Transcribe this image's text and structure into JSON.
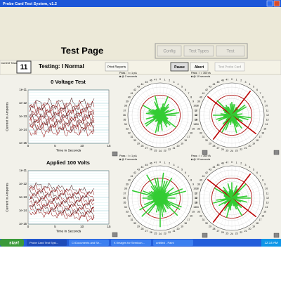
{
  "window": {
    "title": "Probe Card Test System, v1.2"
  },
  "header": {
    "title": "Test Page",
    "buttons": [
      "Config",
      "Test Types",
      "Test"
    ]
  },
  "status": {
    "trace_label": "Current Trace",
    "trace": "11",
    "testing": "Testing: I Normal",
    "print": "Print Reports",
    "pause": "Pause",
    "abort": "Abort",
    "probe": "Test Probe Card"
  },
  "plots": [
    {
      "title": "0 Voltage Test",
      "ylabel": "Current in Amperes",
      "xlabel": "Time in Seconds",
      "yticks": [
        "1e-11",
        "1e-12",
        "1e-13",
        "1e-14",
        "1e-15"
      ],
      "xticks": [
        "0",
        "5",
        "10",
        "15"
      ]
    },
    {
      "title": "Applied 100 Volts",
      "ylabel": "Current in Amperes",
      "xlabel": "Time in Seconds",
      "yticks": [
        "1e-11",
        "1e-12",
        "1e-13",
        "1e-14",
        "1e-15"
      ],
      "xticks": [
        "0",
        "5",
        "10",
        "15"
      ]
    }
  ],
  "polar": {
    "labels": [
      "0",
      "1",
      "2",
      "3",
      "4",
      "5",
      "6",
      "7",
      "8",
      "9",
      "10",
      "11",
      "12",
      "13",
      "14",
      "15",
      "16",
      "17",
      "18",
      "19",
      "20",
      "21",
      "22",
      "23",
      "24",
      "25",
      "26",
      "27",
      "28",
      "29",
      "30",
      "31",
      "32",
      "33",
      "34",
      "35",
      "36",
      "37",
      "38",
      "39",
      "40",
      "41",
      "42",
      "43",
      "44",
      "45",
      "46",
      "47"
    ],
    "plots": [
      {
        "pass": "Pass : I = 1 pA",
        "time": "@ 2 seconds"
      },
      {
        "pass": "Pass : I = 300 fA",
        "time": "@ 10 seconds"
      },
      {
        "pass": "Pass : I = 1 pA",
        "time": "@ 2 seconds"
      },
      {
        "pass": "Pass : I = 300 fA",
        "time": "@ 10 seconds"
      }
    ]
  },
  "taskbar": {
    "start": "start",
    "items": [
      "Probe Card Test Syst...",
      "C:\\Documents and Se...",
      "K:\\Images for Semicon...",
      "untitled - Paint"
    ],
    "clock": "12:14 AM"
  }
}
